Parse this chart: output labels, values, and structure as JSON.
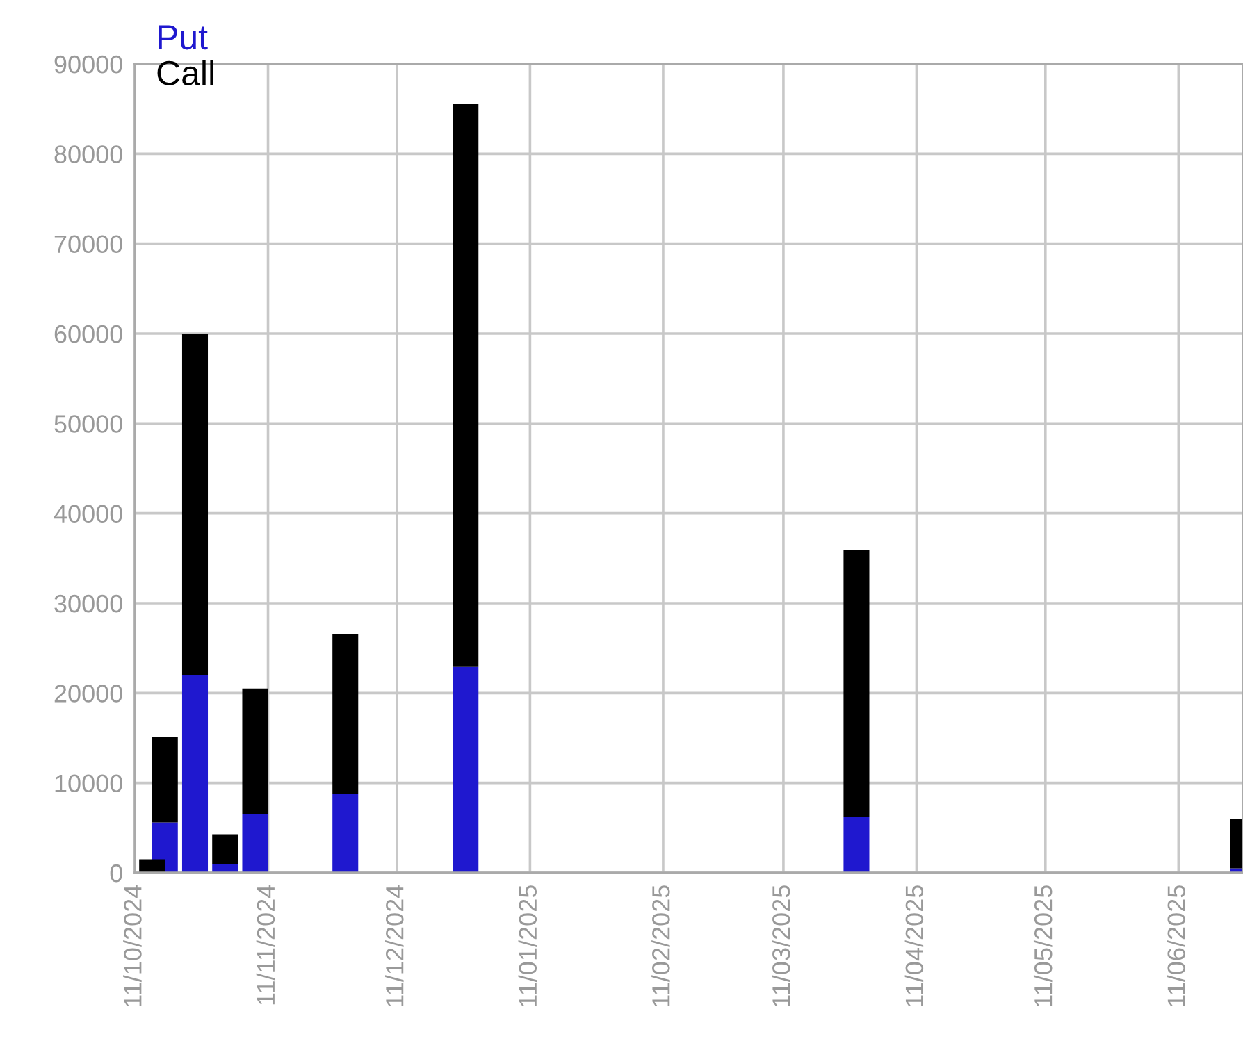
{
  "chart_data": {
    "type": "bar",
    "stacked": true,
    "x": [
      "2024-10-15",
      "2024-10-18",
      "2024-10-25",
      "2024-11-01",
      "2024-11-08",
      "2024-11-29",
      "2024-12-27",
      "2025-03-28",
      "2025-06-26"
    ],
    "series": [
      {
        "name": "Put",
        "color": "#1f18cf",
        "values": [
          null,
          5600,
          22000,
          1000,
          6500,
          8800,
          22900,
          6200,
          500
        ]
      },
      {
        "name": "Call",
        "color": "#000000",
        "values": [
          1500,
          9500,
          38000,
          3300,
          14000,
          17800,
          62700,
          29700,
          5500
        ]
      }
    ],
    "xlim": [
      "2024-10-11",
      "2025-06-26"
    ],
    "xticks": [
      {
        "value": "2024-10-11",
        "label": "11/10/2024"
      },
      {
        "value": "2024-11-11",
        "label": "11/11/2024"
      },
      {
        "value": "2024-12-11",
        "label": "11/12/2024"
      },
      {
        "value": "2025-01-11",
        "label": "11/01/2025"
      },
      {
        "value": "2025-02-11",
        "label": "11/02/2025"
      },
      {
        "value": "2025-03-11",
        "label": "11/03/2025"
      },
      {
        "value": "2025-04-11",
        "label": "11/04/2025"
      },
      {
        "value": "2025-05-11",
        "label": "11/05/2025"
      },
      {
        "value": "2025-06-11",
        "label": "11/06/2025"
      }
    ],
    "ylim": [
      0,
      90000
    ],
    "yticks": [
      0,
      10000,
      20000,
      30000,
      40000,
      50000,
      60000,
      70000,
      80000,
      90000
    ],
    "grid": true,
    "legend": "top left"
  }
}
